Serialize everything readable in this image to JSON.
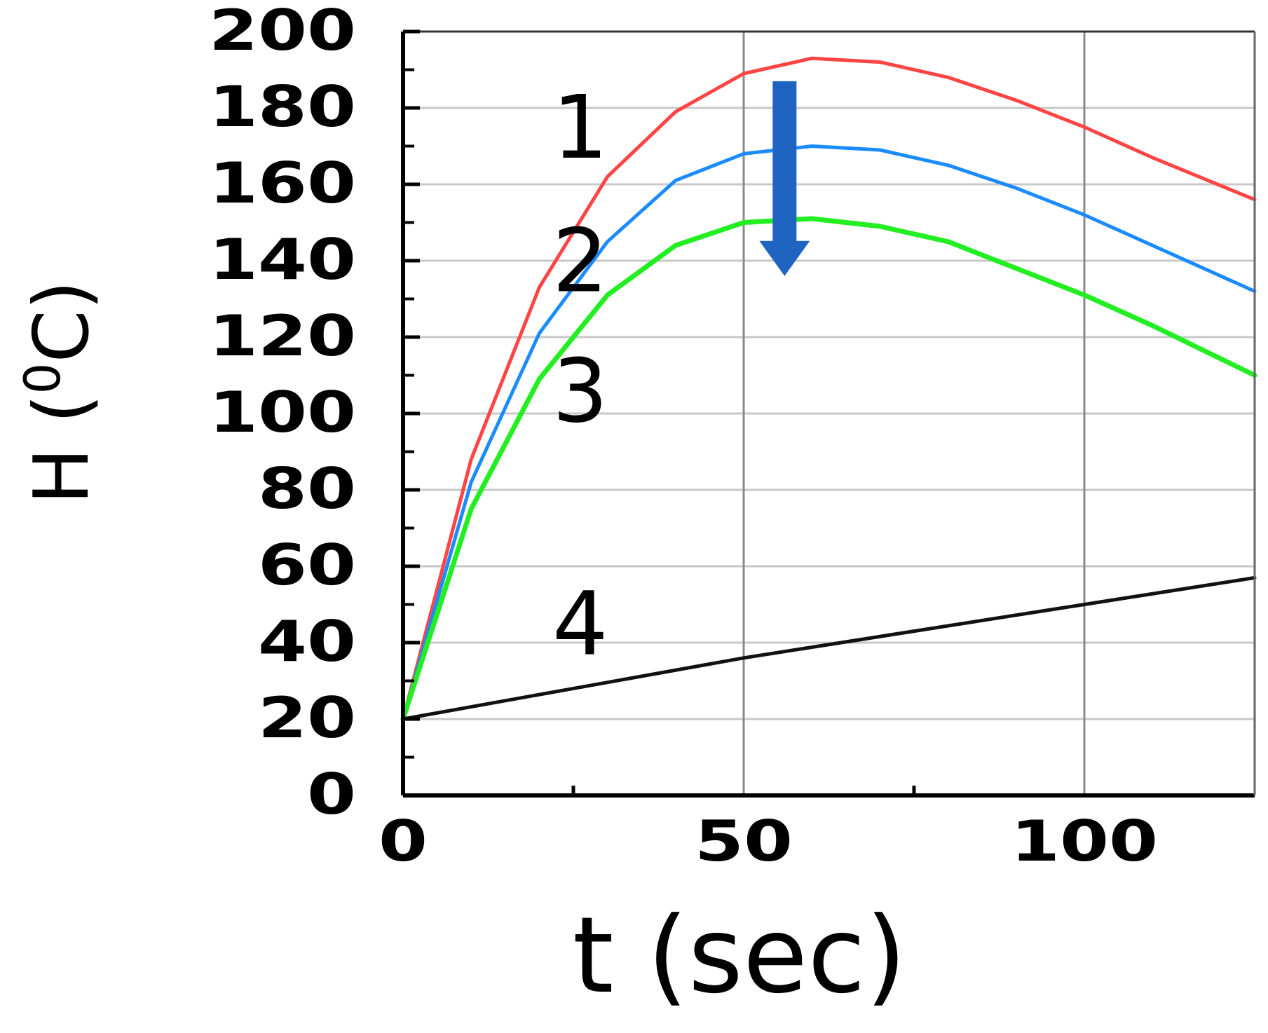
{
  "chart_data": {
    "type": "line",
    "xlabel": "t (sec)",
    "ylabel_main": "H (",
    "ylabel_sup": "0",
    "ylabel_end": "C)",
    "xlim": [
      0,
      125
    ],
    "ylim": [
      0,
      200
    ],
    "x_ticks": [
      0,
      50,
      100
    ],
    "y_ticks": [
      0,
      20,
      40,
      60,
      80,
      100,
      120,
      140,
      160,
      180,
      200
    ],
    "grid": true,
    "colors": {
      "1": "#ff4444",
      "2": "#1a8cff",
      "3": "#22ee22",
      "4": "#111111",
      "arrow": "#1f64c0"
    },
    "series": [
      {
        "label": "1",
        "x": [
          0,
          10,
          20,
          30,
          40,
          50,
          60,
          70,
          80,
          90,
          100,
          110,
          125
        ],
        "y": [
          20,
          88,
          133,
          162,
          179,
          189,
          193,
          192,
          188,
          182,
          175,
          167,
          156
        ]
      },
      {
        "label": "2",
        "x": [
          0,
          10,
          20,
          30,
          40,
          50,
          60,
          70,
          80,
          90,
          100,
          110,
          125
        ],
        "y": [
          20,
          82,
          121,
          145,
          161,
          168,
          170,
          169,
          165,
          159,
          152,
          144,
          132
        ]
      },
      {
        "label": "3",
        "x": [
          0,
          10,
          20,
          30,
          40,
          50,
          60,
          70,
          80,
          90,
          100,
          110,
          125
        ],
        "y": [
          20,
          75,
          109,
          131,
          144,
          150,
          151,
          149,
          145,
          138,
          131,
          123,
          110
        ]
      },
      {
        "label": "4",
        "x": [
          0,
          25,
          50,
          75,
          100,
          125
        ],
        "y": [
          20,
          28,
          36,
          43,
          50,
          57
        ]
      }
    ],
    "series_label_positions": [
      {
        "label": "1",
        "x": 26,
        "y": 178
      },
      {
        "label": "2",
        "x": 26,
        "y": 143
      },
      {
        "label": "3",
        "x": 26,
        "y": 109
      },
      {
        "label": "4",
        "x": 26,
        "y": 48
      }
    ],
    "arrow": {
      "x": 56,
      "y_from": 187,
      "y_to": 136
    }
  }
}
